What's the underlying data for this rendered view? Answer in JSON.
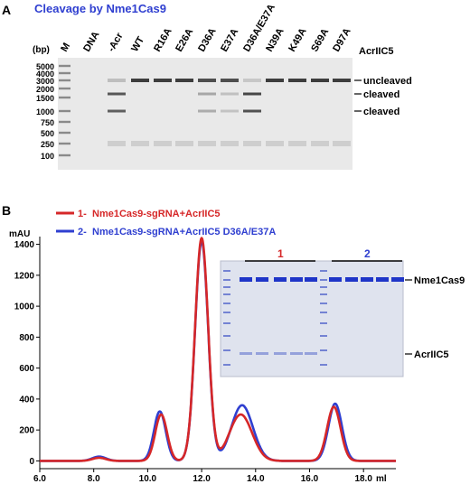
{
  "panel_a": {
    "label": "A",
    "title": "Cleavage by Nme1Cas9",
    "bp_label": "(bp)",
    "marker_label": "M",
    "ladder_sizes": [
      "5000",
      "4000",
      "3000",
      "2000",
      "1500",
      "1000",
      "750",
      "500",
      "250",
      "100"
    ],
    "lanes": [
      "DNA",
      "-Acr",
      "WT",
      "R16A",
      "E26A",
      "D36A",
      "E37A",
      "D36A/E37A",
      "N39A",
      "K49A",
      "S69A",
      "D97A"
    ],
    "construct_label": "AcrIIC5",
    "band_labels": [
      "uncleaved",
      "cleaved",
      "cleaved"
    ]
  },
  "panel_b": {
    "label": "B",
    "legend": [
      {
        "index": "1-",
        "name": "Nme1Cas9-sgRNA+AcrIIC5",
        "color": "#d62728"
      },
      {
        "index": "2-",
        "name": "Nme1Cas9-sgRNA+AcrIIC5 D36A/E37A",
        "color": "#2f3fd0"
      }
    ],
    "gel_group_labels": [
      "1",
      "2"
    ],
    "gel_band_labels": [
      "Nme1Cas9",
      "AcrIIC5"
    ]
  },
  "chart_data": {
    "type": "line",
    "ylabel": "mAU",
    "xlabel": "ml",
    "xlim": [
      6.0,
      19.2
    ],
    "ylim": [
      -50,
      1450
    ],
    "x_ticks": [
      "6.0",
      "8.0",
      "10.0",
      "12.0",
      "14.0",
      "16.0",
      "18.0"
    ],
    "y_ticks": [
      "0",
      "200",
      "400",
      "600",
      "800",
      "1000",
      "1200",
      "1400"
    ],
    "series": [
      {
        "name": "Nme1Cas9-sgRNA+AcrIIC5",
        "color": "#d62728",
        "peaks": [
          {
            "x": 8.2,
            "h": 20,
            "w": 0.25
          },
          {
            "x": 10.5,
            "h": 300,
            "w": 0.22
          },
          {
            "x": 12.0,
            "h": 1440,
            "w": 0.24
          },
          {
            "x": 13.45,
            "h": 300,
            "w": 0.42
          },
          {
            "x": 16.9,
            "h": 350,
            "w": 0.25
          }
        ]
      },
      {
        "name": "Nme1Cas9-sgRNA+AcrIIC5 D36A/E37A",
        "color": "#2f3fd0",
        "peaks": [
          {
            "x": 8.2,
            "h": 28,
            "w": 0.25
          },
          {
            "x": 10.45,
            "h": 320,
            "w": 0.22
          },
          {
            "x": 12.0,
            "h": 1420,
            "w": 0.24
          },
          {
            "x": 13.5,
            "h": 360,
            "w": 0.4
          },
          {
            "x": 16.95,
            "h": 370,
            "w": 0.25
          }
        ]
      }
    ]
  }
}
